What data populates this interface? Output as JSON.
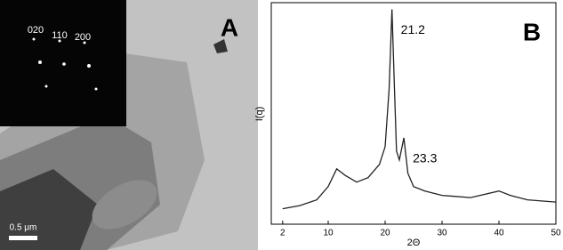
{
  "panel_a": {
    "label": "A",
    "inset_labels": [
      "020",
      "110",
      "200"
    ],
    "scale_bar": "0.5 μm"
  },
  "chart_data": {
    "type": "line",
    "panel_label": "B",
    "x_label": "2Θ",
    "y_label": "I(q)",
    "xlim": [
      0,
      50
    ],
    "xticks": [
      2,
      10,
      20,
      30,
      40,
      50
    ],
    "ylim": [
      0,
      100
    ],
    "x": [
      2,
      5,
      8,
      10,
      11.5,
      13,
      15,
      17,
      19,
      20,
      20.7,
      21.2,
      21.6,
      22,
      22.5,
      23.3,
      24,
      25,
      27,
      30,
      35,
      40,
      42,
      45,
      50
    ],
    "series": [
      {
        "color": "#222222",
        "values": [
          7,
          8.4,
          11,
          17,
          25,
          22,
          19,
          21,
          27,
          35,
          61,
          97,
          65,
          33,
          29,
          39,
          23,
          17,
          15,
          13,
          12,
          15,
          13,
          11,
          10
        ]
      }
    ],
    "annotations": [
      {
        "text": "21.2",
        "x": 21.2,
        "y": 97
      },
      {
        "text": "23.3",
        "x": 23.3,
        "y": 39
      }
    ]
  }
}
